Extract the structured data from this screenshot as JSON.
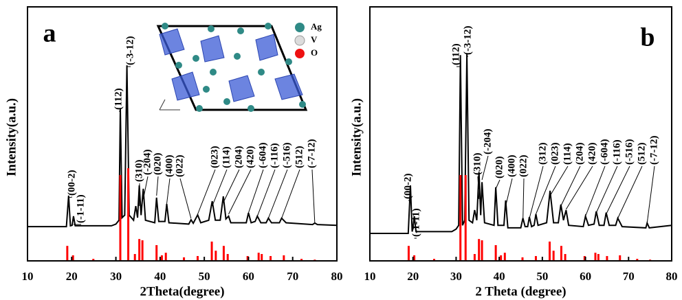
{
  "chart_data": [
    {
      "type": "line",
      "label": "a",
      "xlabel": "2Theta(degree)",
      "ylabel": "Intensity(a.u.)",
      "xlim": [
        10,
        80
      ],
      "xticks": [
        10,
        20,
        30,
        40,
        50,
        60,
        70,
        80
      ],
      "ylim": [
        0,
        100
      ],
      "series": [
        {
          "type": "line",
          "color": "#000000",
          "x": [
            10,
            18.8,
            19.3,
            19.7,
            20.1,
            20.4,
            20.8,
            29,
            30,
            30.7,
            31.0,
            31.4,
            32.0,
            32.5,
            33.0,
            34.0,
            34.5,
            34.9,
            35.3,
            35.7,
            36.2,
            36.7,
            38.8,
            39.2,
            39.7,
            41.1,
            41.5,
            42,
            46.5,
            47.0,
            47.5,
            48.5,
            49.2,
            51.0,
            51.8,
            52.5,
            53.6,
            54.3,
            54.9,
            55.5,
            56,
            59.5,
            60,
            60.6,
            61.5,
            62,
            62.8,
            64,
            64.5,
            65.2,
            67,
            67.5,
            68.5,
            74.5,
            75,
            75.6,
            80
          ],
          "values": [
            13.5,
            13.5,
            25.7,
            13.8,
            14,
            17.6,
            13.8,
            13.8,
            14.5,
            16,
            60,
            17,
            18,
            77,
            18,
            16,
            21.6,
            17,
            29.7,
            18,
            28.4,
            16,
            15,
            24.9,
            15.5,
            15.5,
            22.4,
            15,
            14.5,
            16.2,
            14.8,
            18.1,
            15,
            16,
            23.5,
            16,
            16,
            25.4,
            16.5,
            17.6,
            15,
            15,
            18.9,
            15,
            15.5,
            17.6,
            15,
            15,
            16.8,
            15,
            15,
            16.8,
            15,
            14.3,
            14.9,
            14.3,
            14
          ]
        },
        {
          "type": "stem",
          "color": "#ff0000",
          "x": [
            19.0,
            20.3,
            24.9,
            31.0,
            32.8,
            34.3,
            35.3,
            36.0,
            39.2,
            40.4,
            41.3,
            45.4,
            48.5,
            51.7,
            52.6,
            54.4,
            55.3,
            59.8,
            62.3,
            63.0,
            65.0,
            68.0,
            72.0,
            75.0
          ],
          "values": [
            5.9,
            2.2,
            0.8,
            33.8,
            36.5,
            2.7,
            8.6,
            8.1,
            6.2,
            2.2,
            3.2,
            1.4,
            1.9,
            7.6,
            4,
            5.9,
            2.7,
            1.9,
            3.2,
            2.7,
            1.9,
            2.2,
            0.8,
            0.5
          ]
        }
      ],
      "annotations": [
        {
          "text": "(00-2)",
          "x": 19.3
        },
        {
          "text": "(-1-11)",
          "x": 20.4
        },
        {
          "text": "(112)",
          "x": 31.0
        },
        {
          "text": "(-3-12)",
          "x": 32.5
        },
        {
          "text": "(310)",
          "x": 35.3
        },
        {
          "text": "(-204)",
          "x": 36.2
        },
        {
          "text": "(020)",
          "x": 39.2
        },
        {
          "text": "(400)",
          "x": 41.5
        },
        {
          "text": "(022)",
          "x": 47.0
        },
        {
          "text": "(023)",
          "x": 48.5
        },
        {
          "text": "(114)",
          "x": 51.8
        },
        {
          "text": "(204)",
          "x": 54.3
        },
        {
          "text": "(420)",
          "x": 55.5
        },
        {
          "text": "(-604)",
          "x": 60.0
        },
        {
          "text": "(-116)",
          "x": 62.0
        },
        {
          "text": "(-516)",
          "x": 64.5
        },
        {
          "text": "(512)",
          "x": 67.5
        },
        {
          "text": "(-7-12)",
          "x": 75.0
        }
      ],
      "inset": {
        "legend": [
          "Ag",
          "V",
          "O"
        ]
      }
    },
    {
      "type": "line",
      "label": "b",
      "xlabel": "2 Theta (degree)",
      "ylabel": "Intensity(a.u.)",
      "xlim": [
        10,
        80
      ],
      "xticks": [
        10,
        20,
        30,
        40,
        50,
        60,
        70,
        80
      ],
      "ylim": [
        0,
        100
      ],
      "series": [
        {
          "type": "line",
          "color": "#000000",
          "x": [
            10,
            18.9,
            19.4,
            19.8,
            20.0,
            20.3,
            20.7,
            29,
            30.0,
            30.6,
            31.0,
            31.5,
            32.0,
            32.5,
            33.0,
            33.8,
            34.3,
            34.8,
            35.3,
            35.7,
            36.0,
            36.6,
            38.8,
            39.2,
            39.7,
            41.1,
            41.5,
            42.0,
            45.0,
            45.5,
            46,
            46.6,
            47.0,
            47.5,
            48.1,
            48.5,
            49.0,
            51.0,
            51.8,
            52.6,
            53.7,
            54.3,
            54.9,
            55.5,
            56.1,
            59.5,
            60,
            60.7,
            62.0,
            62.5,
            63.2,
            64.3,
            64.8,
            65.5,
            67.0,
            67.5,
            68.5,
            74,
            74.3,
            74.8,
            80
          ],
          "values": [
            10.8,
            10.8,
            29.7,
            11.5,
            13,
            17.6,
            11.5,
            11.5,
            12.5,
            14,
            81,
            14,
            16,
            81.6,
            16,
            15,
            20,
            16,
            35,
            18,
            31,
            15,
            14,
            29,
            14,
            14,
            23.8,
            13,
            13,
            16.8,
            13.5,
            13.5,
            17.3,
            13.5,
            14,
            18.4,
            14,
            15,
            27.6,
            15,
            15,
            22.2,
            16,
            20,
            14,
            13.5,
            17.6,
            14,
            14.5,
            19.5,
            14,
            14,
            19,
            14,
            14,
            16.8,
            13.5,
            13,
            14.9,
            13,
            14
          ]
        },
        {
          "type": "stem",
          "color": "#ff0000",
          "x": [
            19.0,
            20.3,
            24.9,
            31.0,
            32.2,
            34.3,
            35.3,
            36.0,
            39.2,
            40.4,
            41.3,
            45.4,
            48.5,
            51.7,
            52.6,
            54.4,
            55.3,
            59.8,
            62.3,
            63.0,
            65.0,
            68.0,
            72.0,
            75.0
          ],
          "values": [
            5.9,
            2.2,
            0.8,
            33.8,
            33.8,
            2.7,
            8.6,
            8.1,
            6.2,
            2.2,
            3.2,
            1.4,
            1.9,
            7.6,
            4,
            5.9,
            2.7,
            1.9,
            3.2,
            2.7,
            1.9,
            2.2,
            0.8,
            0.5
          ]
        }
      ],
      "annotations": [
        {
          "text": "(00-2)",
          "x": 19.4
        },
        {
          "text": "(-1-11)",
          "x": 20.3
        },
        {
          "text": "(112)",
          "x": 31.0
        },
        {
          "text": "(-3-12)",
          "x": 32.5
        },
        {
          "text": "(310)",
          "x": 35.3
        },
        {
          "text": "(-204)",
          "x": 36.0
        },
        {
          "text": "(020)",
          "x": 39.2
        },
        {
          "text": "(400)",
          "x": 41.5
        },
        {
          "text": "(022)",
          "x": 45.5
        },
        {
          "text": "(312)",
          "x": 47.0
        },
        {
          "text": "(023)",
          "x": 48.5
        },
        {
          "text": "(114)",
          "x": 51.8
        },
        {
          "text": "(204)",
          "x": 54.3
        },
        {
          "text": "(420)",
          "x": 55.5
        },
        {
          "text": "(-604)",
          "x": 60.0
        },
        {
          "text": "(-116)",
          "x": 62.5
        },
        {
          "text": "(-516)",
          "x": 64.8
        },
        {
          "text": "(512)",
          "x": 67.5
        },
        {
          "text": "(-7-12)",
          "x": 74.3
        }
      ]
    }
  ]
}
